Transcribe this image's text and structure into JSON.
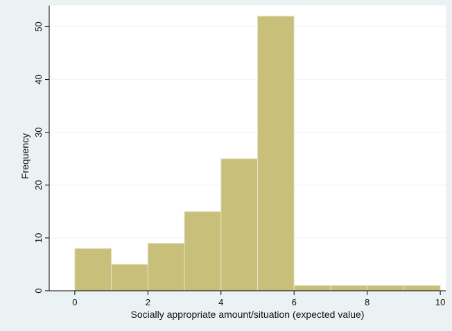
{
  "chart_data": {
    "type": "bar",
    "title": "",
    "xlabel": "Socially appropriate amount/situation (expected value)",
    "ylabel": "Frequency",
    "bins": [
      {
        "x0": 0,
        "x1": 1,
        "count": 8
      },
      {
        "x0": 1,
        "x1": 2,
        "count": 5
      },
      {
        "x0": 2,
        "x1": 3,
        "count": 9
      },
      {
        "x0": 3,
        "x1": 4,
        "count": 15
      },
      {
        "x0": 4,
        "x1": 5,
        "count": 25
      },
      {
        "x0": 5,
        "x1": 6,
        "count": 52
      },
      {
        "x0": 6,
        "x1": 7,
        "count": 1
      },
      {
        "x0": 7,
        "x1": 8,
        "count": 1
      },
      {
        "x0": 8,
        "x1": 9,
        "count": 1
      },
      {
        "x0": 9,
        "x1": 10,
        "count": 1
      }
    ],
    "xlim": [
      -0.7,
      10.15
    ],
    "ylim": [
      0,
      54
    ],
    "xticks": [
      0,
      2,
      4,
      6,
      8,
      10
    ],
    "yticks": [
      0,
      10,
      20,
      30,
      40,
      50
    ],
    "grid": true,
    "legend": "none",
    "colors": {
      "outer_background": "#eaf2f3",
      "plot_background": "#ffffff",
      "bar_fill": "#c8c07a",
      "bar_edge": "#e6e2c4",
      "grid": "#eef3f4",
      "axis": "#000000"
    }
  }
}
